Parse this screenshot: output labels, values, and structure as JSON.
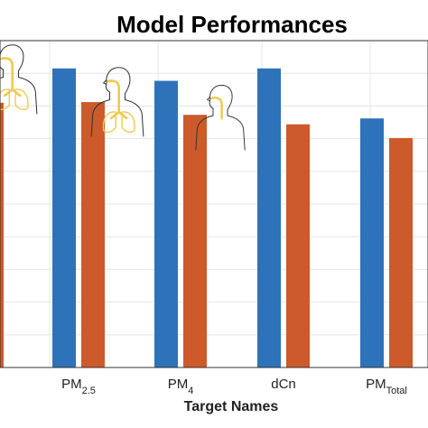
{
  "chart_data": {
    "type": "bar",
    "title": "Model Performances",
    "xlabel": "Target Names",
    "ylabel": "",
    "categories": [
      {
        "main": "PM",
        "sub": "2.5"
      },
      {
        "main": "PM",
        "sub": "4"
      },
      {
        "main": "dCn",
        "sub": ""
      },
      {
        "main": "PM",
        "sub": "Total"
      }
    ],
    "series": [
      {
        "color": "#2e73b9",
        "values": [
          0.915,
          0.877,
          0.915,
          0.762
        ]
      },
      {
        "color": "#cc5a2b",
        "values": [
          0.812,
          0.773,
          0.744,
          0.702
        ]
      }
    ],
    "partial_left_bar": {
      "color": "#cc5a2b",
      "value": 0.81
    },
    "ylim": [
      0,
      1
    ],
    "grid": true,
    "legend": "none",
    "icons": [
      "human-respiratory-nose-icon",
      "human-respiratory-lungs-icon",
      "human-respiratory-throat-icon",
      "human-respiratory-upper-airway-icon"
    ]
  }
}
